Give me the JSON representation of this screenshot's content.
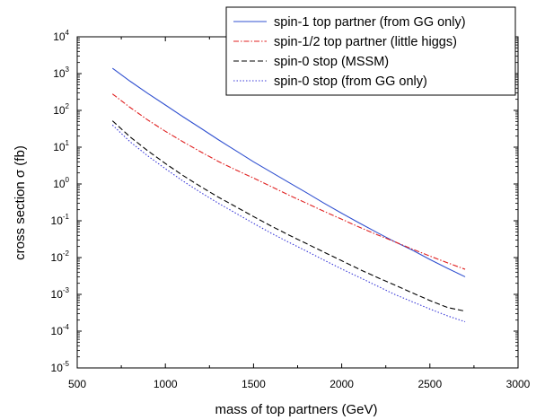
{
  "chart_data": {
    "type": "line",
    "xlabel": "mass of top partners (GeV)",
    "ylabel": "cross section σ (fb)",
    "xlim": [
      500,
      3000
    ],
    "ylim_log10": [
      -5,
      4
    ],
    "y_scale": "log",
    "grid": false,
    "legend_position": "top-right",
    "x_ticks": [
      "500",
      "1000",
      "1500",
      "2000",
      "2500",
      "3000"
    ],
    "y_tick_exponents": [
      "-5",
      "-4",
      "-3",
      "-2",
      "-1",
      "0",
      "1",
      "2",
      "3",
      "4"
    ],
    "y_tick_base": "10",
    "series": [
      {
        "name": "spin-1 top partner (from GG only)",
        "color": "#3050d0",
        "dash": "solid",
        "x": [
          700,
          800,
          900,
          1000,
          1100,
          1200,
          1300,
          1400,
          1500,
          1600,
          1700,
          1800,
          1900,
          2000,
          2100,
          2200,
          2300,
          2400,
          2500,
          2600,
          2700
        ],
        "y": [
          1400,
          620,
          290,
          140,
          67,
          33,
          16,
          8.0,
          4.0,
          2.1,
          1.1,
          0.58,
          0.3,
          0.16,
          0.087,
          0.048,
          0.027,
          0.016,
          0.0089,
          0.0051,
          0.003
        ]
      },
      {
        "name": "spin-1/2 top partner (little higgs)",
        "color": "#e02020",
        "dash": "dashdot",
        "x": [
          700,
          800,
          900,
          1000,
          1100,
          1200,
          1300,
          1400,
          1500,
          1600,
          1700,
          1800,
          1900,
          2000,
          2100,
          2200,
          2300,
          2400,
          2500,
          2600,
          2700
        ],
        "y": [
          280,
          120,
          55,
          27,
          14,
          7.5,
          4.1,
          2.4,
          1.45,
          0.85,
          0.5,
          0.3,
          0.18,
          0.11,
          0.067,
          0.042,
          0.027,
          0.017,
          0.011,
          0.0072,
          0.0048
        ]
      },
      {
        "name": "spin-0 stop (MSSM)",
        "color": "#000000",
        "dash": "dashed",
        "x": [
          700,
          800,
          900,
          1000,
          1100,
          1200,
          1300,
          1400,
          1500,
          1600,
          1700,
          1800,
          1900,
          2000,
          2100,
          2200,
          2300,
          2400,
          2500,
          2600,
          2700
        ],
        "y": [
          52,
          19,
          8.0,
          3.6,
          1.7,
          0.85,
          0.44,
          0.24,
          0.13,
          0.072,
          0.041,
          0.024,
          0.014,
          0.0082,
          0.0048,
          0.0029,
          0.0018,
          0.0011,
          0.00068,
          0.00044,
          0.00035
        ]
      },
      {
        "name": "spin-0 stop (from GG only)",
        "color": "#3838d8",
        "dash": "dotted",
        "x": [
          700,
          800,
          900,
          1000,
          1100,
          1200,
          1300,
          1400,
          1500,
          1600,
          1700,
          1800,
          1900,
          2000,
          2100,
          2200,
          2300,
          2400,
          2500,
          2600,
          2700
        ],
        "y": [
          40,
          14,
          5.8,
          2.6,
          1.2,
          0.59,
          0.3,
          0.16,
          0.085,
          0.046,
          0.026,
          0.015,
          0.0085,
          0.0049,
          0.0029,
          0.0017,
          0.001,
          0.00063,
          0.0004,
          0.00026,
          0.00018
        ]
      }
    ]
  }
}
